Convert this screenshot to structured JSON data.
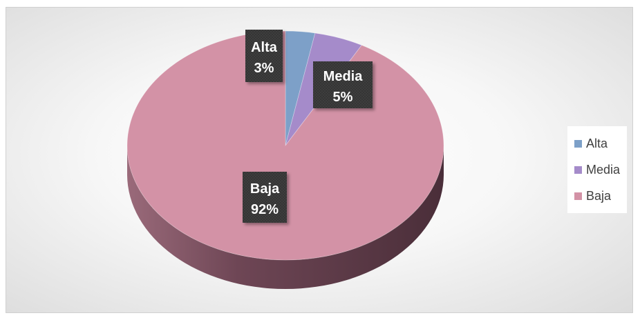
{
  "chart_data": {
    "type": "pie",
    "title": "",
    "slices": [
      {
        "label": "Alta",
        "percent_label": "3%",
        "value": 3,
        "color": "#7da0c8"
      },
      {
        "label": "Media",
        "percent_label": "5%",
        "value": 5,
        "color": "#a58bca"
      },
      {
        "label": "Baja",
        "percent_label": "92%",
        "value": 92,
        "color": "#d392a6"
      }
    ],
    "style": "3d",
    "legend_position": "right",
    "label_box_color": "#3c3c3c"
  },
  "legend": {
    "items": [
      {
        "label": "Alta",
        "color": "#7da0c8"
      },
      {
        "label": "Media",
        "color": "#a58bca"
      },
      {
        "label": "Baja",
        "color": "#d392a6"
      }
    ]
  }
}
